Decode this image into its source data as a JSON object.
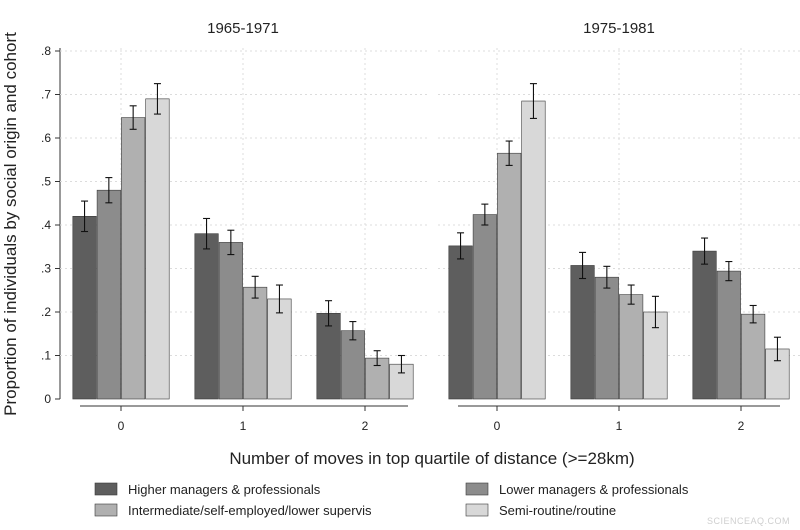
{
  "watermark": "SCIENCEAQ.COM",
  "chart_data": {
    "type": "bar",
    "xlabel": "Number of moves in top quartile of distance (>=28km)",
    "ylabel": "Proportion of individuals by social origin and cohort",
    "ylim": [
      0,
      0.8
    ],
    "yticks": [
      0,
      0.1,
      0.2,
      0.3,
      0.4,
      0.5,
      0.6,
      0.7,
      0.8
    ],
    "ytick_labels": [
      "0",
      ".1",
      ".2",
      ".3",
      ".4",
      ".5",
      ".6",
      ".7",
      ".8"
    ],
    "grid": true,
    "legend_position": "bottom",
    "legend": [
      {
        "name": "Higher managers & professionals",
        "color": "#5e5e5e"
      },
      {
        "name": "Lower managers & professionals",
        "color": "#8c8c8c"
      },
      {
        "name": "Intermediate/self-employed/lower supervis",
        "color": "#b0b0b0"
      },
      {
        "name": "Semi-routine/routine",
        "color": "#d8d8d8"
      }
    ],
    "panels": [
      {
        "title": "1965-1971",
        "categories": [
          "0",
          "1",
          "2"
        ],
        "series": [
          {
            "name": "Higher managers & professionals",
            "values": [
              0.42,
              0.38,
              0.197
            ],
            "ci_low": [
              0.385,
              0.345,
              0.168
            ],
            "ci_high": [
              0.455,
              0.415,
              0.226
            ]
          },
          {
            "name": "Lower managers & professionals",
            "values": [
              0.48,
              0.36,
              0.157
            ],
            "ci_low": [
              0.451,
              0.332,
              0.136
            ],
            "ci_high": [
              0.509,
              0.388,
              0.178
            ]
          },
          {
            "name": "Intermediate/self-employed/lower supervis",
            "values": [
              0.647,
              0.257,
              0.094
            ],
            "ci_low": [
              0.62,
              0.232,
              0.077
            ],
            "ci_high": [
              0.674,
              0.282,
              0.111
            ]
          },
          {
            "name": "Semi-routine/routine",
            "values": [
              0.69,
              0.23,
              0.08
            ],
            "ci_low": [
              0.655,
              0.198,
              0.06
            ],
            "ci_high": [
              0.725,
              0.262,
              0.1
            ]
          }
        ]
      },
      {
        "title": "1975-1981",
        "categories": [
          "0",
          "1",
          "2"
        ],
        "series": [
          {
            "name": "Higher managers & professionals",
            "values": [
              0.352,
              0.307,
              0.34
            ],
            "ci_low": [
              0.322,
              0.277,
              0.31
            ],
            "ci_high": [
              0.382,
              0.337,
              0.37
            ]
          },
          {
            "name": "Lower managers & professionals",
            "values": [
              0.424,
              0.28,
              0.294
            ],
            "ci_low": [
              0.4,
              0.255,
              0.272
            ],
            "ci_high": [
              0.448,
              0.305,
              0.316
            ]
          },
          {
            "name": "Intermediate/self-employed/lower supervis",
            "values": [
              0.565,
              0.24,
              0.195
            ],
            "ci_low": [
              0.537,
              0.218,
              0.175
            ],
            "ci_high": [
              0.593,
              0.262,
              0.215
            ]
          },
          {
            "name": "Semi-routine/routine",
            "values": [
              0.685,
              0.2,
              0.115
            ],
            "ci_low": [
              0.645,
              0.164,
              0.088
            ],
            "ci_high": [
              0.725,
              0.236,
              0.142
            ]
          }
        ]
      }
    ]
  }
}
